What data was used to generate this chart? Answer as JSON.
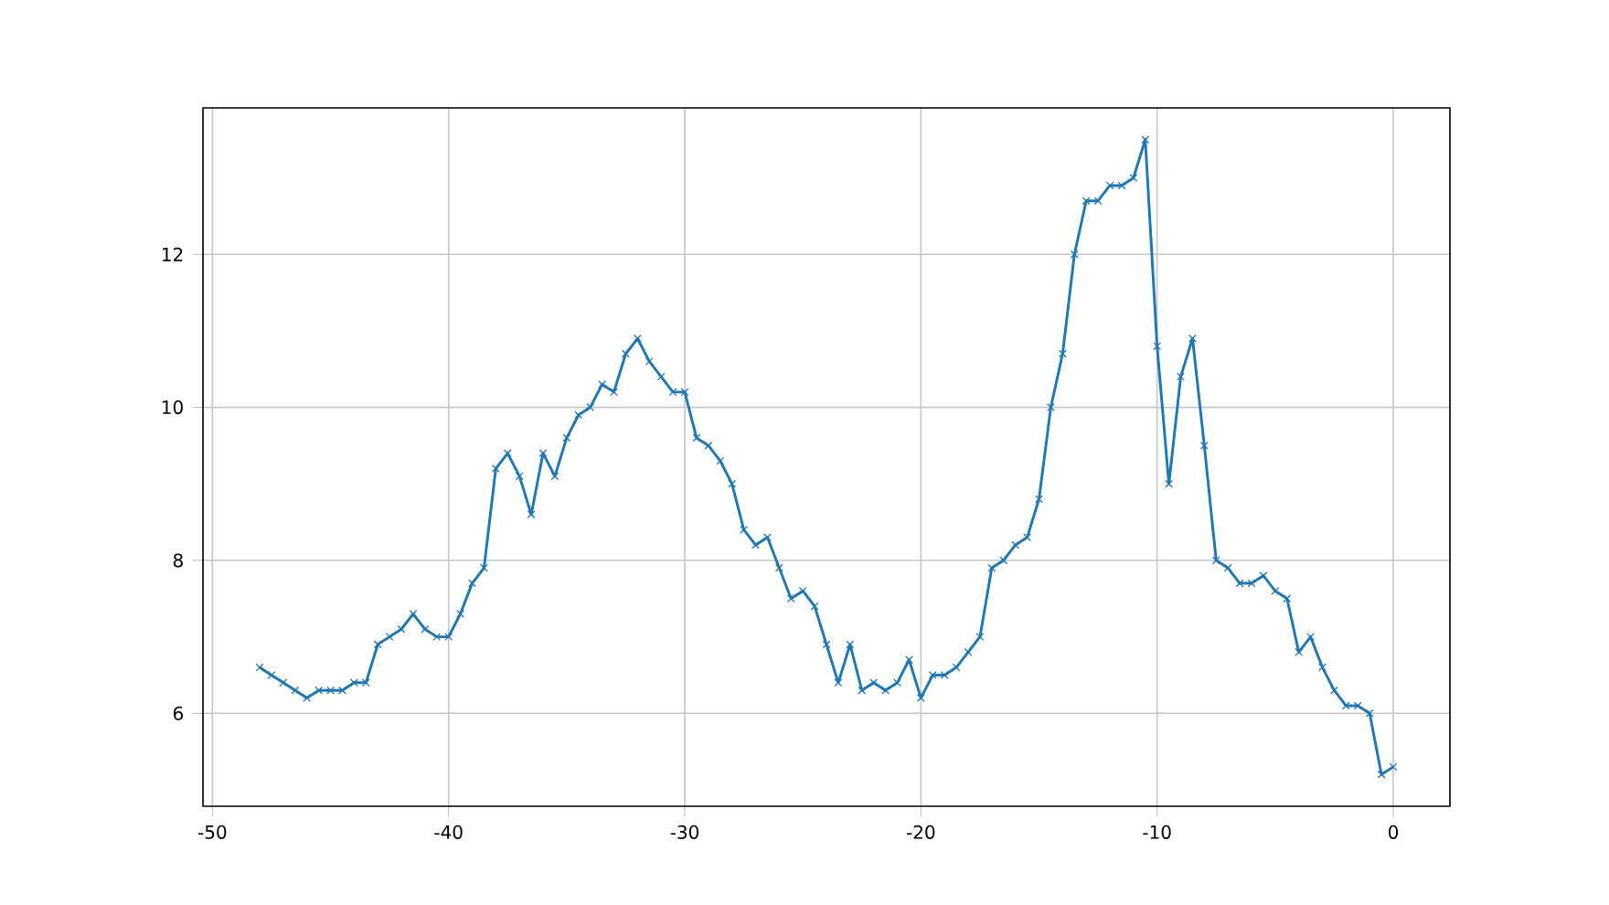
{
  "chart_data": {
    "type": "line",
    "x": [
      -48,
      -47.5,
      -47,
      -46.5,
      -46,
      -45.5,
      -45,
      -44.5,
      -44,
      -43.5,
      -43,
      -42.5,
      -42,
      -41.5,
      -41,
      -40.5,
      -40,
      -39.5,
      -39,
      -38.5,
      -38,
      -37.5,
      -37,
      -36.5,
      -36,
      -35.5,
      -35,
      -34.5,
      -34,
      -33.5,
      -33,
      -32.5,
      -32,
      -31.5,
      -31,
      -30.5,
      -30,
      -29.5,
      -29,
      -28.5,
      -28,
      -27.5,
      -27,
      -26.5,
      -26,
      -25.5,
      -25,
      -24.5,
      -24,
      -23.5,
      -23,
      -22.5,
      -22,
      -21.5,
      -21,
      -20.5,
      -20,
      -19.5,
      -19,
      -18.5,
      -18,
      -17.5,
      -17,
      -16.5,
      -16,
      -15.5,
      -15,
      -14.5,
      -14,
      -13.5,
      -13,
      -12.5,
      -12,
      -11.5,
      -11,
      -10.5,
      -10,
      -9.5,
      -9,
      -8.5,
      -8,
      -7.5,
      -7,
      -6.5,
      -6,
      -5.5,
      -5,
      -4.5,
      -4,
      -3.5,
      -3,
      -2.5,
      -2,
      -1.5,
      -1,
      -0.5,
      0
    ],
    "series": [
      {
        "color": "#1f77b4",
        "values": [
          6.6,
          6.5,
          6.4,
          6.3,
          6.2,
          6.3,
          6.3,
          6.3,
          6.4,
          6.4,
          6.9,
          7.0,
          7.1,
          7.3,
          7.1,
          7.0,
          7.0,
          7.3,
          7.7,
          7.9,
          9.2,
          9.4,
          9.1,
          8.6,
          9.4,
          9.1,
          9.6,
          9.9,
          10.0,
          10.3,
          10.2,
          10.7,
          10.9,
          10.6,
          10.4,
          10.2,
          10.2,
          9.6,
          9.5,
          9.3,
          9.0,
          8.4,
          8.2,
          8.3,
          7.9,
          7.5,
          7.6,
          7.4,
          6.9,
          6.4,
          6.9,
          6.3,
          6.4,
          6.3,
          6.4,
          6.7,
          6.2,
          6.5,
          6.5,
          6.6,
          6.8,
          7.0,
          7.9,
          8.0,
          8.2,
          8.3,
          8.8,
          10.0,
          10.7,
          12.0,
          12.7,
          12.7,
          12.9,
          12.9,
          13.0,
          13.5,
          10.8,
          9.0,
          10.4,
          10.9,
          9.5,
          8.0,
          7.9,
          7.7,
          7.7,
          7.8,
          7.6,
          7.5,
          6.8,
          7.0,
          6.6,
          6.3,
          6.1,
          6.1,
          6.0,
          5.2,
          5.3
        ]
      }
    ],
    "xlim": [
      -50.4,
      2.4
    ],
    "ylim": [
      4.785,
      13.915
    ],
    "xticks": [
      -50,
      -40,
      -30,
      -20,
      -10,
      0
    ],
    "yticks": [
      6,
      8,
      10,
      12
    ],
    "grid": true,
    "marker": "cross",
    "line_style": "solid"
  }
}
